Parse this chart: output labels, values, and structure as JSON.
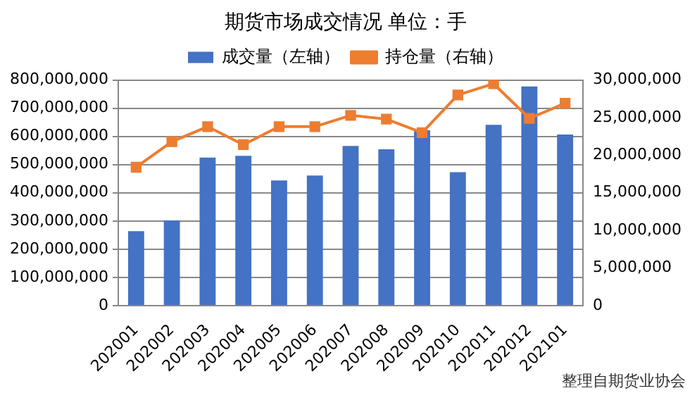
{
  "chart_data": {
    "type": "bar",
    "title": "期货市场成交情况 单位：手",
    "categories": [
      "202001",
      "202002",
      "202003",
      "202004",
      "202005",
      "202006",
      "202007",
      "202008",
      "202009",
      "202010",
      "202011",
      "202012",
      "202101"
    ],
    "series": [
      {
        "name": "成交量（左轴）",
        "color": "#4472c4",
        "values": [
          264000000,
          302000000,
          525000000,
          531000000,
          444000000,
          461000000,
          566000000,
          554000000,
          622000000,
          473000000,
          641000000,
          777000000,
          607000000
        ]
      },
      {
        "name": "持仓量（右轴）",
        "type": "line",
        "axis": "y2",
        "color": "#ed7d31",
        "marker": "square",
        "values": [
          18400000,
          21800000,
          23800000,
          21400000,
          23800000,
          23800000,
          25300000,
          24800000,
          23000000,
          28000000,
          29500000,
          24900000,
          26900000
        ]
      }
    ],
    "ylim": [
      0,
      800000000
    ],
    "yticks": [
      {
        "value": 0,
        "label": "0"
      },
      {
        "value": 100000000,
        "label": "100,000,000"
      },
      {
        "value": 200000000,
        "label": "200,000,000"
      },
      {
        "value": 300000000,
        "label": "300,000,000"
      },
      {
        "value": 400000000,
        "label": "400,000,000"
      },
      {
        "value": 500000000,
        "label": "500,000,000"
      },
      {
        "value": 600000000,
        "label": "600,000,000"
      },
      {
        "value": 700000000,
        "label": "700,000,000"
      },
      {
        "value": 800000000,
        "label": "800,000,000"
      }
    ],
    "y2lim": [
      0,
      30000000
    ],
    "y2ticks": [
      {
        "value": 0,
        "label": "0"
      },
      {
        "value": 5000000,
        "label": "5,000,000"
      },
      {
        "value": 10000000,
        "label": "10,000,000"
      },
      {
        "value": 15000000,
        "label": "15,000,000"
      },
      {
        "value": 20000000,
        "label": "20,000,000"
      },
      {
        "value": 25000000,
        "label": "25,000,000"
      },
      {
        "value": 30000000,
        "label": "30,000,000"
      }
    ],
    "grid": "y",
    "legend": "top",
    "annotations": [
      "整理自期货业协会"
    ]
  }
}
